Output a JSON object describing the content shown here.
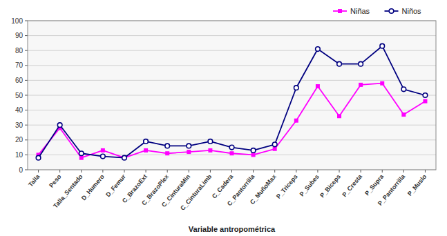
{
  "chart_data": {
    "type": "line",
    "categories": [
      "Talla",
      "Peso",
      "Talla_Sentado",
      "D_Humero",
      "D_Femur",
      "C_BrazoExt",
      "C_BrazoPlex",
      "C_CinturaMin",
      "C_CinturaLimb",
      "C_Cadera",
      "C_Pantorrilla",
      "C_MuñoMax",
      "P_Triceps",
      "P_Subes",
      "P_Biceps",
      "P_Cresta",
      "P_Supra",
      "P_Pantorrilla",
      "P_Muslo"
    ],
    "series": [
      {
        "name": "Niñas",
        "color": "#FF00FF",
        "marker": "square",
        "values": [
          10,
          28,
          8,
          13,
          8,
          13,
          11,
          12,
          13,
          11,
          10,
          14,
          33,
          56,
          36,
          57,
          58,
          37,
          46
        ]
      },
      {
        "name": "Niños",
        "color": "#000080",
        "marker": "circle",
        "values": [
          8,
          30,
          11,
          9,
          8,
          19,
          16,
          16,
          19,
          15,
          13,
          17,
          55,
          81,
          71,
          71,
          83,
          54,
          50
        ]
      }
    ],
    "x_label": "Variable antropométrica",
    "ylim": [
      0,
      100
    ],
    "yticks": [
      0,
      10,
      20,
      30,
      40,
      50,
      60,
      70,
      80,
      90,
      100
    ],
    "grid": true,
    "legend": "upper right"
  }
}
